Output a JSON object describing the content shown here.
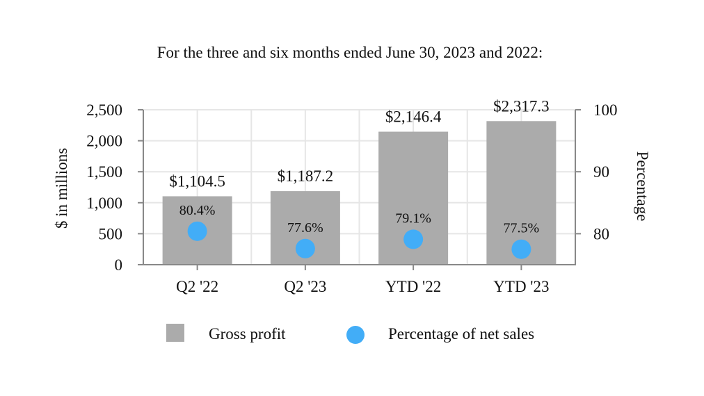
{
  "chart_data": {
    "type": "bar",
    "title": "For the three and six months ended June 30, 2023 and 2022:",
    "categories": [
      "Q2 '22",
      "Q2 '23",
      "YTD '22",
      "YTD '23"
    ],
    "series": [
      {
        "name": "Gross profit",
        "axis": "left",
        "mark": "bar",
        "values": [
          1104.5,
          1187.2,
          2146.4,
          2317.3
        ],
        "labels": [
          "$1,104.5",
          "$1,187.2",
          "$2,146.4",
          "$2,317.3"
        ],
        "color": "#ababab"
      },
      {
        "name": "Percentage of net sales",
        "axis": "right",
        "mark": "point",
        "values": [
          80.4,
          77.6,
          79.1,
          77.5
        ],
        "labels": [
          "80.4%",
          "77.6%",
          "79.1%",
          "77.5%"
        ],
        "color": "#42adf7"
      }
    ],
    "ylabel": "$ in millions",
    "ylim": [
      0,
      2500
    ],
    "yticks": [
      0,
      500,
      1000,
      1500,
      2000,
      2500
    ],
    "ytick_labels": [
      "0",
      "500",
      "1,000",
      "1,500",
      "2,000",
      "2,500"
    ],
    "y2label": "Percentage",
    "y2lim": [
      75,
      100
    ],
    "y2ticks": [
      80,
      90,
      100
    ],
    "y2tick_labels": [
      "80",
      "90",
      "100"
    ],
    "grid": true,
    "legend_position": "bottom",
    "colors": {
      "grid": "#e6e6e6",
      "axis": "#888888"
    }
  }
}
